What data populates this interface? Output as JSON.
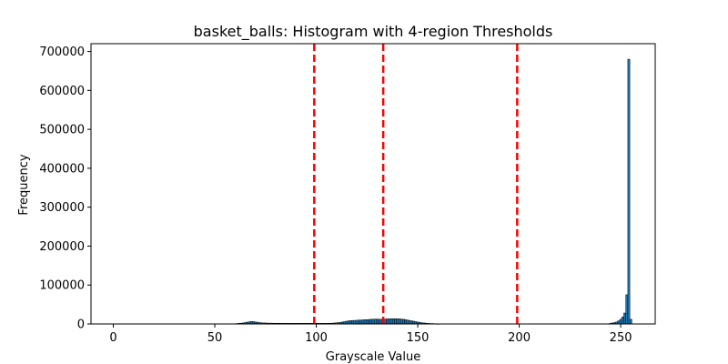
{
  "chart_data": {
    "type": "bar",
    "title": "basket_balls: Histogram with 4-region Thresholds",
    "xlabel": "Grayscale Value",
    "ylabel": "Frequency",
    "xlim": [
      -11,
      267
    ],
    "ylim": [
      0,
      720000
    ],
    "xticks": [
      0,
      50,
      100,
      150,
      200,
      250
    ],
    "yticks": [
      0,
      100000,
      200000,
      300000,
      400000,
      500000,
      600000,
      700000
    ],
    "grid": false,
    "bar_color": "#1f77b4",
    "bar_edge_color": "#000000",
    "thresholds": [
      99,
      133,
      199
    ],
    "threshold_color": "#ff0000",
    "series": [
      {
        "bins": [
          60,
          61,
          62,
          63,
          64,
          65,
          66,
          67,
          68,
          69,
          70,
          71,
          72,
          73,
          74,
          75,
          76,
          77,
          78,
          79,
          80,
          81,
          82,
          83,
          84,
          85,
          86,
          87,
          88,
          89,
          90,
          91,
          92,
          93,
          94,
          95,
          96,
          97,
          98,
          99,
          100,
          101,
          102,
          103,
          104,
          105,
          106,
          107,
          108,
          109,
          110,
          111,
          112,
          113,
          114,
          115,
          116,
          117,
          118,
          119,
          120,
          121,
          122,
          123,
          124,
          125,
          126,
          127,
          128,
          129,
          130,
          131,
          132,
          133,
          134,
          135,
          136,
          137,
          138,
          139,
          140,
          141,
          142,
          143,
          144,
          145,
          146,
          147,
          148,
          149,
          150,
          151,
          152,
          153,
          154,
          155,
          156,
          157,
          158,
          159,
          160,
          245,
          246,
          247,
          248,
          249,
          250,
          251,
          252,
          253,
          254,
          255
        ],
        "values": [
          500,
          1000,
          1500,
          2000,
          2500,
          3500,
          4500,
          5500,
          6500,
          6000,
          5000,
          4500,
          3500,
          3000,
          2500,
          2500,
          2000,
          2000,
          2000,
          1800,
          1800,
          1800,
          1800,
          1600,
          1600,
          1600,
          1600,
          1600,
          1600,
          1600,
          1600,
          1600,
          1600,
          1600,
          1600,
          1600,
          1600,
          1600,
          1600,
          1600,
          1600,
          1600,
          1600,
          1600,
          1600,
          1600,
          1600,
          1800,
          2000,
          2500,
          3000,
          3500,
          4000,
          5000,
          6000,
          7000,
          8000,
          8500,
          9000,
          9000,
          9500,
          10000,
          10000,
          10500,
          11000,
          11000,
          11500,
          12000,
          12000,
          12500,
          12500,
          12000,
          12000,
          12500,
          12500,
          13000,
          13000,
          13500,
          13500,
          13500,
          13500,
          13000,
          12500,
          12000,
          11000,
          10000,
          9000,
          8000,
          7000,
          6000,
          5000,
          4000,
          3000,
          2500,
          2000,
          1500,
          1000,
          1000,
          800,
          500,
          300,
          1500,
          2500,
          3500,
          5000,
          8000,
          12000,
          18000,
          28000,
          75000,
          680000,
          12000
        ]
      }
    ]
  }
}
